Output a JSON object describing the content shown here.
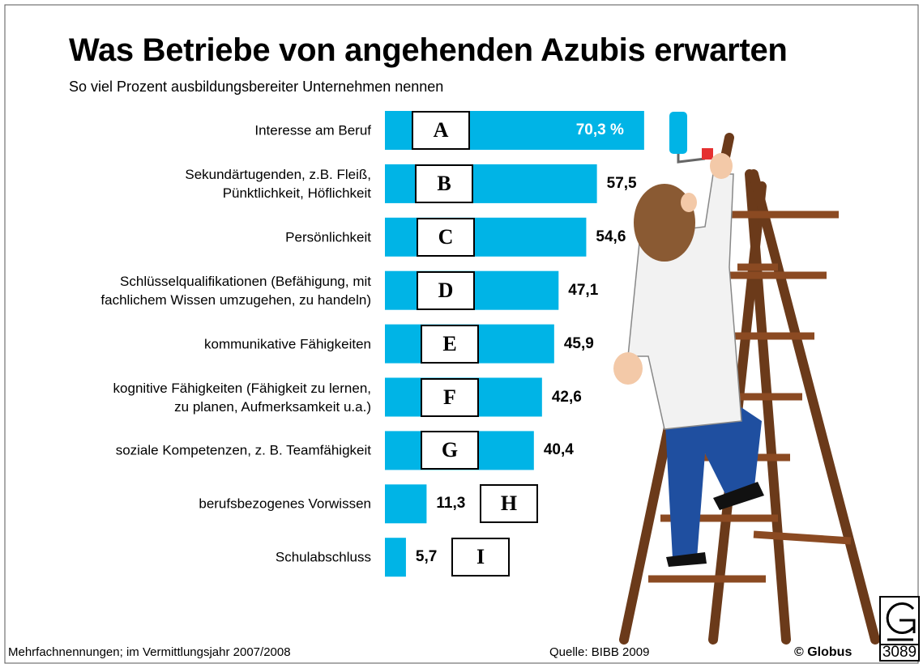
{
  "chart_data": {
    "type": "bar",
    "orientation": "horizontal",
    "title": "Was Betriebe von angehenden Azubis erwarten",
    "subtitle": "So viel Prozent ausbildungsbereiter Unternehmen nennen",
    "categories": [
      "Interesse am Beruf",
      "Sekundärtugenden, z.B. Fleiß,\nPünktlichkeit, Höflichkeit",
      "Persönlichkeit",
      "Schlüsselqualifikationen (Befähigung, mit\nfachlichem Wissen umzugehen, zu handeln)",
      "kommunikative Fähigkeiten",
      "kognitive Fähigkeiten (Fähigkeit zu lernen,\nzu planen, Aufmerksamkeit u.a.)",
      "soziale Kompetenzen, z. B. Teamfähigkeit",
      "berufsbezogenes Vorwissen",
      "Schulabschluss"
    ],
    "values": [
      70.3,
      57.5,
      54.6,
      47.1,
      45.9,
      42.6,
      40.4,
      11.3,
      5.7
    ],
    "value_labels": [
      "70,3 %",
      "57,5",
      "54,6",
      "47,1",
      "45,9",
      "42,6",
      "40,4",
      "11,3",
      "5,7"
    ],
    "markers": [
      "A",
      "B",
      "C",
      "D",
      "E",
      "F",
      "G",
      "H",
      "I"
    ],
    "color": "#00b4e6",
    "note": "Mehrfachnennungen; im Vermittlungsjahr 2007/2008",
    "source": "Quelle: BIBB 2009",
    "credit": "© Globus",
    "number": "3089"
  }
}
